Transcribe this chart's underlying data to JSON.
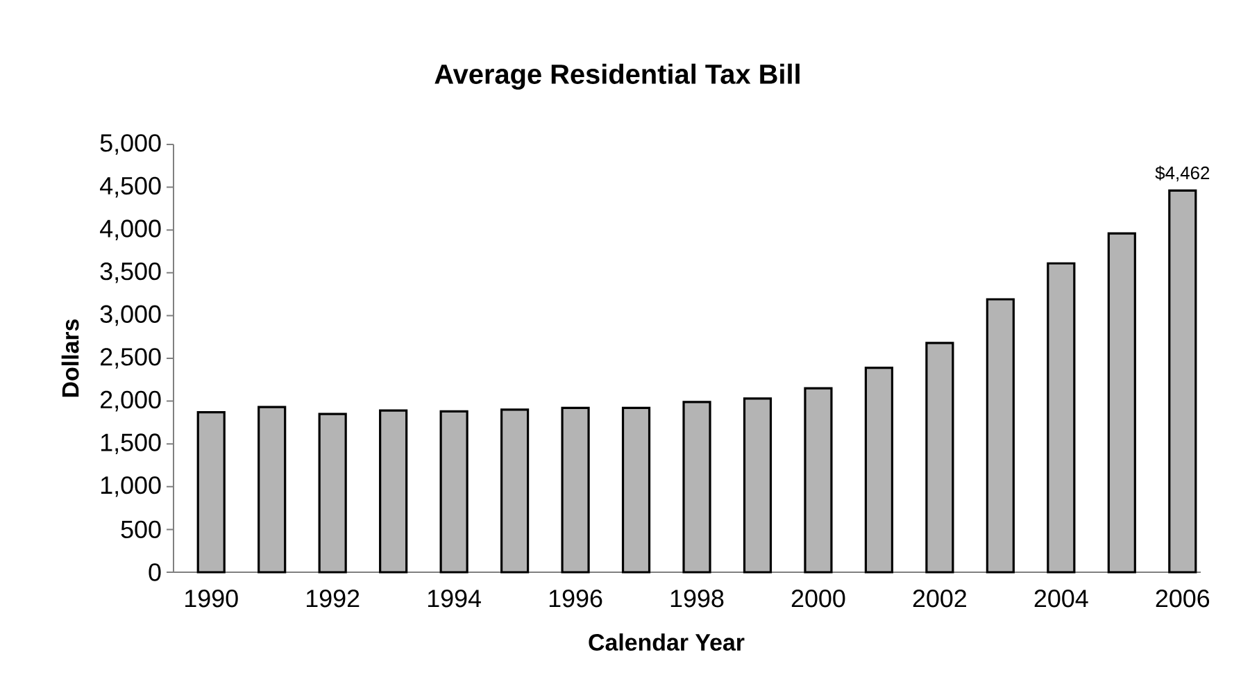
{
  "chart_data": {
    "type": "bar",
    "title": "Average Residential Tax Bill",
    "xlabel": "Calendar Year",
    "ylabel": "Dollars",
    "categories": [
      "1990",
      null,
      "1992",
      null,
      "1994",
      null,
      "1996",
      null,
      "1998",
      null,
      "2000",
      null,
      "2002",
      null,
      "2004",
      null,
      "2006"
    ],
    "values": [
      1870,
      1930,
      1850,
      1890,
      1880,
      1900,
      1920,
      1920,
      1990,
      2030,
      2150,
      2390,
      2680,
      3190,
      3610,
      3960,
      4462
    ],
    "value_labels": [
      null,
      null,
      null,
      null,
      null,
      null,
      null,
      null,
      null,
      null,
      null,
      null,
      null,
      null,
      null,
      null,
      "$4,462"
    ],
    "color": "#b4b4b4",
    "ylim": [
      0,
      5000
    ],
    "yticks": [
      0,
      500,
      {
        "value": 1000,
        "label": "1,000"
      },
      {
        "value": 1500,
        "label": "1,500"
      },
      {
        "value": 2000,
        "label": "2,000"
      },
      {
        "value": 2500,
        "label": "2,500"
      },
      {
        "value": 3000,
        "label": "3,000"
      },
      {
        "value": 3500,
        "label": "3,500"
      },
      {
        "value": 4000,
        "label": "4,000"
      },
      {
        "value": 4500,
        "label": "4,500"
      },
      {
        "value": 5000,
        "label": "5,000"
      }
    ],
    "grid": false
  }
}
